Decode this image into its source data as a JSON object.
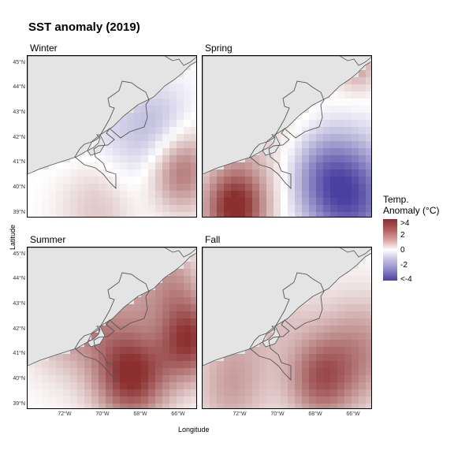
{
  "chart_data": {
    "type": "heatmap",
    "title": "SST anomaly (2019)",
    "xlabel": "Longitude",
    "ylabel": "Latitude",
    "x_ticks": [
      "72°W",
      "70°W",
      "68°W",
      "66°W"
    ],
    "y_ticks": [
      "45°N",
      "44°N",
      "43°N",
      "42°N",
      "41°N",
      "40°N",
      "39°N"
    ],
    "xlim": [
      -74.0,
      -65.0
    ],
    "ylim": [
      38.8,
      45.3
    ],
    "legend": {
      "title_line1": "Temp.",
      "title_line2": "Anomaly (°C)",
      "labels": [
        ">4",
        "2",
        "0",
        "-2",
        "<-4"
      ],
      "range": [
        -4,
        4
      ],
      "colors": {
        "high": "#8b2f2f",
        "mid": "#ffffff",
        "low": "#4a40a0"
      },
      "placement": "right"
    },
    "panels": [
      {
        "name": "Winter",
        "features": [
          {
            "lon": -66.0,
            "lat": 40.8,
            "value": 3.2,
            "spread": 1.2
          },
          {
            "lon": -70.0,
            "lat": 39.6,
            "value": 1.6,
            "spread": 1.6
          },
          {
            "lon": -68.5,
            "lat": 41.0,
            "value": -1.2,
            "spread": 1.8
          },
          {
            "lon": -66.8,
            "lat": 42.3,
            "value": -1.3,
            "spread": 1.2
          },
          {
            "lon": -71.5,
            "lat": 43.3,
            "value": -0.6,
            "spread": 2.0
          }
        ]
      },
      {
        "name": "Spring",
        "features": [
          {
            "lon": -72.3,
            "lat": 39.2,
            "value": 4.0,
            "spread": 1.2
          },
          {
            "lon": -66.0,
            "lat": 39.6,
            "value": -3.2,
            "spread": 1.6
          },
          {
            "lon": -67.8,
            "lat": 40.6,
            "value": -2.2,
            "spread": 1.4
          },
          {
            "lon": -70.5,
            "lat": 42.0,
            "value": 1.0,
            "spread": 2.2
          },
          {
            "lon": -65.8,
            "lat": 45.0,
            "value": 1.8,
            "spread": 0.8
          }
        ]
      },
      {
        "name": "Summer",
        "features": [
          {
            "lon": -68.5,
            "lat": 40.2,
            "value": 4.0,
            "spread": 1.4
          },
          {
            "lon": -65.4,
            "lat": 41.6,
            "value": 3.6,
            "spread": 1.2
          },
          {
            "lon": -71.5,
            "lat": 43.0,
            "value": 2.6,
            "spread": 1.8
          },
          {
            "lon": -68.2,
            "lat": 43.0,
            "value": 0.4,
            "spread": 0.7
          },
          {
            "lon": -67.5,
            "lat": 41.6,
            "value": -0.2,
            "spread": 0.8
          },
          {
            "lon": -66.5,
            "lat": 44.0,
            "value": 1.8,
            "spread": 1.2
          }
        ]
      },
      {
        "name": "Fall",
        "features": [
          {
            "lon": -67.8,
            "lat": 40.0,
            "value": 2.8,
            "spread": 1.3
          },
          {
            "lon": -72.5,
            "lat": 39.6,
            "value": 1.6,
            "spread": 1.4
          },
          {
            "lon": -71.5,
            "lat": 43.4,
            "value": 1.6,
            "spread": 2.0
          },
          {
            "lon": -65.5,
            "lat": 41.2,
            "value": 2.0,
            "spread": 1.6
          },
          {
            "lon": -68.6,
            "lat": 41.6,
            "value": 0.0,
            "spread": 1.0
          }
        ]
      }
    ]
  }
}
